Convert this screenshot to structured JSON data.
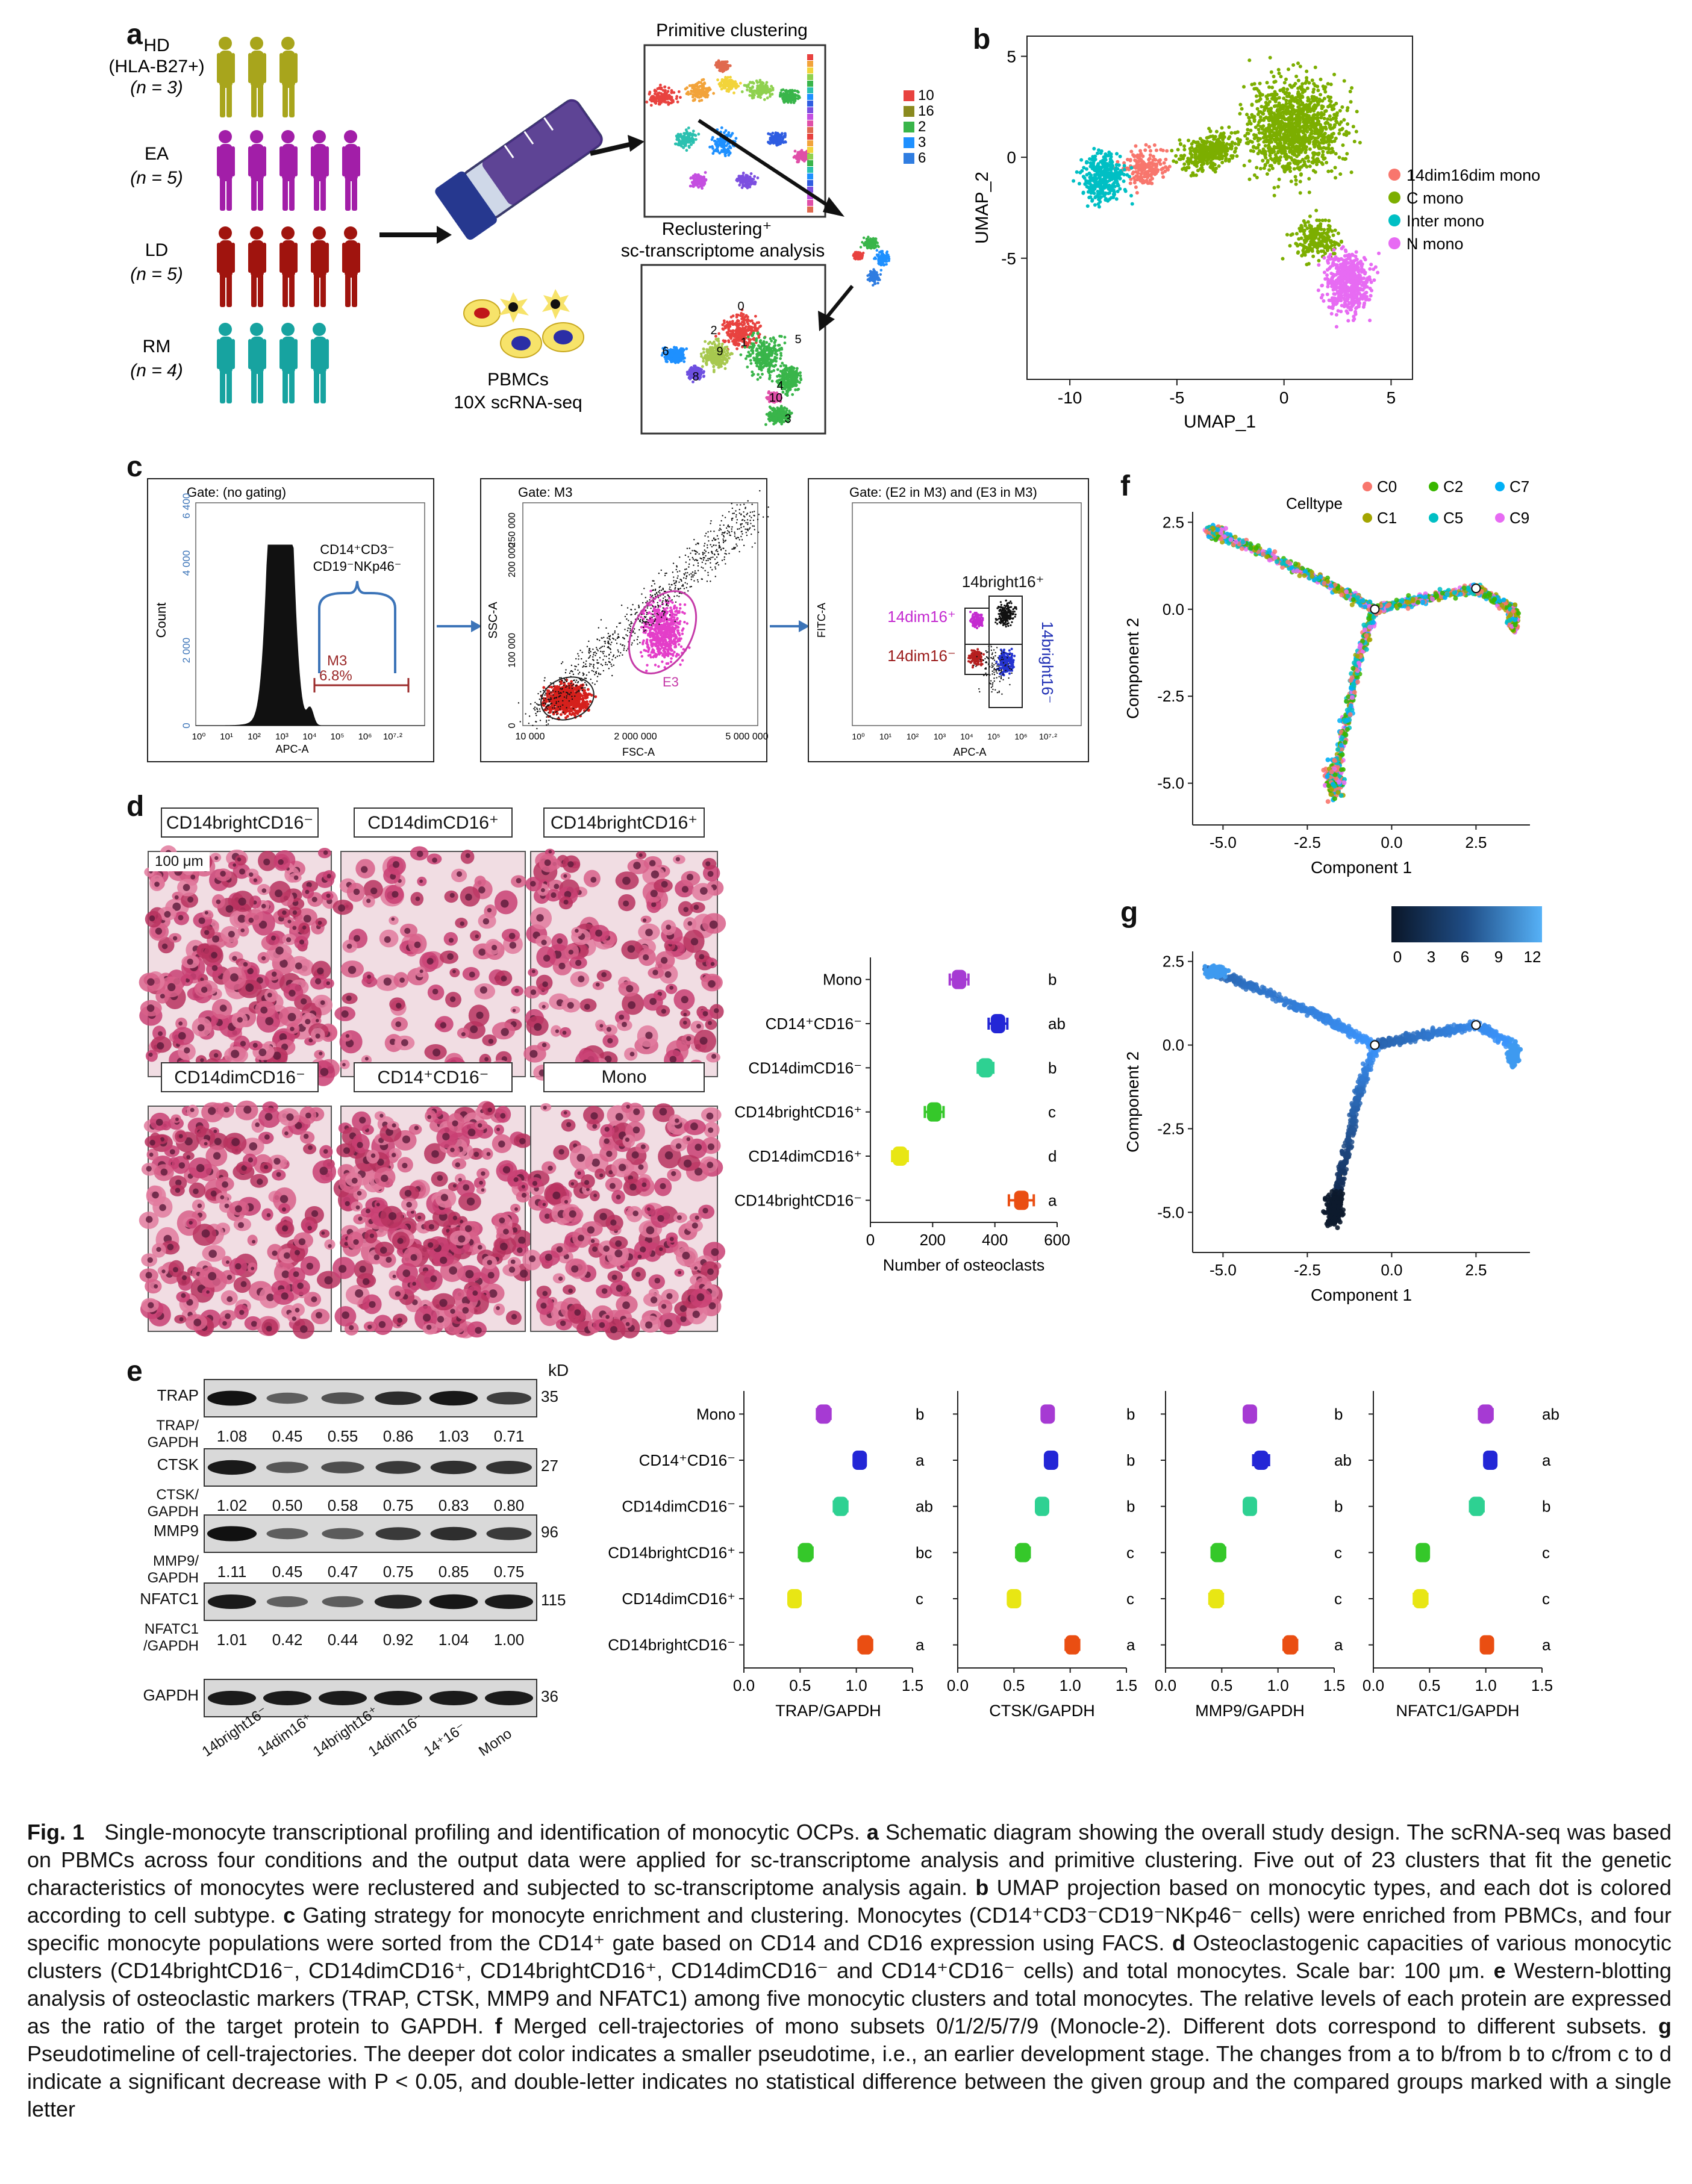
{
  "panel_letters": {
    "a": "a",
    "b": "b",
    "c": "c",
    "d": "d",
    "e": "e",
    "f": "f",
    "g": "g"
  },
  "panel_a": {
    "groups": [
      {
        "name": "HD",
        "sub": "(HLA-B27+)",
        "n": "(n = 3)",
        "color": "#a8a51c",
        "count": 3
      },
      {
        "name": "EA",
        "sub": "",
        "n": "(n = 5)",
        "color": "#a21ea8",
        "count": 5
      },
      {
        "name": "LD",
        "sub": "",
        "n": "(n = 5)",
        "color": "#a0140e",
        "count": 5
      },
      {
        "name": "RM",
        "sub": "",
        "n": "(n = 4)",
        "color": "#17a3a0",
        "count": 4
      }
    ],
    "primitive_title": "Primitive clustering",
    "recluster_title_1": "Reclustering⁺",
    "recluster_title_2": "sc-transcriptome analysis",
    "pbmc_1": "PBMCs",
    "pbmc_2": "10X scRNA-seq",
    "recluster_ids": [
      "10",
      "16",
      "2",
      "3",
      "6"
    ],
    "recluster_colors": [
      "#e8423f",
      "#8a8a1f",
      "#39b54a",
      "#1e90ff",
      "#2f7de1"
    ],
    "map_labels": [
      "0",
      "1",
      "2",
      "3",
      "4",
      "5",
      "6",
      "8",
      "9",
      "10"
    ]
  },
  "panel_b": {
    "xlabel": "UMAP_1",
    "ylabel": "UMAP_2",
    "xticks": [
      "-10",
      "-5",
      "0",
      "5"
    ],
    "yticks": [
      "5",
      "0",
      "-5"
    ],
    "legend": [
      {
        "label": "14dim16dim mono",
        "color": "#f8766d"
      },
      {
        "label": "C mono",
        "color": "#7cae00"
      },
      {
        "label": "Inter mono",
        "color": "#00bfc4"
      },
      {
        "label": "N mono",
        "color": "#e76bf3"
      }
    ]
  },
  "panel_c": {
    "gate1": "Gate: (no gating)",
    "gate2": "Gate: M3",
    "gate3": "Gate: (E2 in M3) and (E3 in M3)",
    "count_label": "Count",
    "apc_label": "APC-A",
    "ssc_label": "SSC-A",
    "fsc_label": "FSC-A",
    "fitc_label": "FITC-A",
    "pheno_1": "CD14⁺CD3⁻",
    "pheno_2": "CD19⁻NKp46⁻",
    "m3": "M3",
    "m3_pct": "6.8%",
    "e3": "E3",
    "y1_ticks": [
      "6 400",
      "4 000",
      "2 000",
      "0"
    ],
    "x1_ticks": [
      "10⁰",
      "10¹",
      "10²",
      "10³",
      "10⁴",
      "10⁵",
      "10⁶",
      "10⁷·²"
    ],
    "y2_ticks": [
      "250 000",
      "200 000",
      "100 000",
      "0"
    ],
    "x2_ticks": [
      "10 000",
      "2 000 000",
      "5 000 000"
    ],
    "q_labels": [
      {
        "text": "14bright16⁺",
        "color": "#111"
      },
      {
        "text": "14dim16⁺",
        "color": "#c42ad0"
      },
      {
        "text": "14dim16⁻",
        "color": "#9b1c1c"
      },
      {
        "text": "14bright16⁻",
        "color": "#1f2fb4"
      }
    ]
  },
  "panel_d": {
    "images": [
      {
        "label": "CD14brightCD16⁻",
        "scale": "100 μm"
      },
      {
        "label": "CD14dimCD16⁺",
        "scale": ""
      },
      {
        "label": "CD14brightCD16⁺",
        "scale": ""
      },
      {
        "label": "CD14dimCD16⁻",
        "scale": ""
      },
      {
        "label": "CD14⁺CD16⁻",
        "scale": ""
      },
      {
        "label": "Mono",
        "scale": ""
      }
    ]
  },
  "chart_data": [
    {
      "type": "scatter",
      "title": "",
      "xlabel": "Number of osteoclasts",
      "ylabel": "",
      "xlim": [
        0,
        600
      ],
      "xticks": [
        0,
        200,
        400,
        600
      ],
      "categories": [
        "Mono",
        "CD14⁺CD16⁻",
        "CD14dimCD16⁻",
        "CD14brightCD16⁺",
        "CD14dimCD16⁺",
        "CD14brightCD16⁻"
      ],
      "values": [
        285,
        410,
        370,
        205,
        95,
        485
      ],
      "errors": [
        30,
        30,
        25,
        30,
        25,
        40
      ],
      "colors": [
        "#a63ad3",
        "#2326d6",
        "#2ed192",
        "#35c82a",
        "#e8e614",
        "#ea4e12"
      ],
      "letters": [
        "b",
        "ab",
        "b",
        "c",
        "d",
        "a"
      ]
    },
    {
      "type": "scatter",
      "xlabel": "TRAP/GAPDH",
      "xlim": [
        0,
        1.5
      ],
      "xticks": [
        "0.0",
        "0.5",
        "1.0",
        "1.5"
      ],
      "categories": [
        "Mono",
        "CD14⁺CD16⁻",
        "CD14dimCD16⁻",
        "CD14brightCD16⁺",
        "CD14dimCD16⁺",
        "CD14brightCD16⁻"
      ],
      "values": [
        0.71,
        1.03,
        0.86,
        0.55,
        0.45,
        1.08
      ],
      "errors": [
        0.06,
        0.05,
        0.06,
        0.06,
        0.05,
        0.06
      ],
      "colors": [
        "#a63ad3",
        "#2326d6",
        "#2ed192",
        "#35c82a",
        "#e8e614",
        "#ea4e12"
      ],
      "letters": [
        "b",
        "a",
        "ab",
        "bc",
        "c",
        "a"
      ]
    },
    {
      "type": "scatter",
      "xlabel": "CTSK/GAPDH",
      "xlim": [
        0,
        1.5
      ],
      "xticks": [
        "0.0",
        "0.5",
        "1.0",
        "1.5"
      ],
      "categories": [
        "Mono",
        "CD14⁺CD16⁻",
        "CD14dimCD16⁻",
        "CD14brightCD16⁺",
        "CD14dimCD16⁺",
        "CD14brightCD16⁻"
      ],
      "values": [
        0.8,
        0.83,
        0.75,
        0.58,
        0.5,
        1.02
      ],
      "errors": [
        0.04,
        0.05,
        0.05,
        0.06,
        0.05,
        0.06
      ],
      "colors": [
        "#a63ad3",
        "#2326d6",
        "#2ed192",
        "#35c82a",
        "#e8e614",
        "#ea4e12"
      ],
      "letters": [
        "b",
        "b",
        "b",
        "c",
        "c",
        "a"
      ]
    },
    {
      "type": "scatter",
      "xlabel": "MMP9/GAPDH",
      "xlim": [
        0,
        1.5
      ],
      "xticks": [
        "0.0",
        "0.5",
        "1.0",
        "1.5"
      ],
      "categories": [
        "Mono",
        "CD14⁺CD16⁻",
        "CD14dimCD16⁻",
        "CD14brightCD16⁺",
        "CD14dimCD16⁺",
        "CD14brightCD16⁻"
      ],
      "values": [
        0.75,
        0.85,
        0.75,
        0.47,
        0.45,
        1.11
      ],
      "errors": [
        0.05,
        0.07,
        0.05,
        0.06,
        0.06,
        0.06
      ],
      "colors": [
        "#a63ad3",
        "#2326d6",
        "#2ed192",
        "#35c82a",
        "#e8e614",
        "#ea4e12"
      ],
      "letters": [
        "b",
        "ab",
        "b",
        "c",
        "c",
        "a"
      ]
    },
    {
      "type": "scatter",
      "xlabel": "NFATC1/GAPDH",
      "xlim": [
        0,
        1.5
      ],
      "xticks": [
        "0.0",
        "0.5",
        "1.0",
        "1.5"
      ],
      "categories": [
        "Mono",
        "CD14⁺CD16⁻",
        "CD14dimCD16⁻",
        "CD14brightCD16⁺",
        "CD14dimCD16⁺",
        "CD14brightCD16⁻"
      ],
      "values": [
        1.0,
        1.04,
        0.92,
        0.44,
        0.42,
        1.01
      ],
      "errors": [
        0.06,
        0.05,
        0.06,
        0.05,
        0.06,
        0.05
      ],
      "colors": [
        "#a63ad3",
        "#2326d6",
        "#2ed192",
        "#35c82a",
        "#e8e614",
        "#ea4e12"
      ],
      "letters": [
        "ab",
        "a",
        "b",
        "c",
        "c",
        "a"
      ]
    }
  ],
  "panel_e": {
    "kd_label": "kD",
    "rows": [
      {
        "name": "TRAP",
        "ratio_label": "TRAP/\nGAPDH",
        "kd": "35",
        "ratios": [
          "1.08",
          "0.45",
          "0.55",
          "0.86",
          "1.03",
          "0.71"
        ]
      },
      {
        "name": "CTSK",
        "ratio_label": "CTSK/\nGAPDH",
        "kd": "27",
        "ratios": [
          "1.02",
          "0.50",
          "0.58",
          "0.75",
          "0.83",
          "0.80"
        ]
      },
      {
        "name": "MMP9",
        "ratio_label": "MMP9/\nGAPDH",
        "kd": "96",
        "ratios": [
          "1.11",
          "0.45",
          "0.47",
          "0.75",
          "0.85",
          "0.75"
        ]
      },
      {
        "name": "NFATC1",
        "ratio_label": "NFATC1\n/GAPDH",
        "kd": "115",
        "ratios": [
          "1.01",
          "0.42",
          "0.44",
          "0.92",
          "1.04",
          "1.00"
        ]
      },
      {
        "name": "GAPDH",
        "ratio_label": "",
        "kd": "36",
        "ratios": []
      }
    ],
    "lanes": [
      "14bright16⁻",
      "14dim16⁺",
      "14bright16⁺",
      "14dim16⁻",
      "14⁺16⁻",
      "Mono"
    ]
  },
  "panel_f": {
    "xlabel": "Component 1",
    "ylabel": "Component 2",
    "xticks": [
      "-5.0",
      "-2.5",
      "0.0",
      "2.5"
    ],
    "yticks": [
      "2.5",
      "0.0",
      "-2.5",
      "-5.0"
    ],
    "legend_title": "Celltype",
    "legend": [
      {
        "label": "C0",
        "color": "#f8766d"
      },
      {
        "label": "C2",
        "color": "#39b600"
      },
      {
        "label": "C7",
        "color": "#00b0f6"
      },
      {
        "label": "C1",
        "color": "#a3a500"
      },
      {
        "label": "C5",
        "color": "#00bfc4"
      },
      {
        "label": "C9",
        "color": "#e76bf3"
      }
    ]
  },
  "panel_g": {
    "xlabel": "Component 1",
    "ylabel": "Component 2",
    "xticks": [
      "-5.0",
      "-2.5",
      "0.0",
      "2.5"
    ],
    "yticks": [
      "2.5",
      "0.0",
      "-2.5",
      "-5.0"
    ],
    "colorbar_ticks": [
      "0",
      "3",
      "6",
      "9",
      "12"
    ]
  },
  "caption": {
    "fig": "Fig. 1",
    "title": "Single-monocyte transcriptional profiling and identification of monocytic OCPs.",
    "a": "a",
    "a_text": "Schematic diagram showing the overall study design. The scRNA-seq was based on PBMCs across four conditions and the output data were applied for sc-transcriptome analysis and primitive clustering. Five out of 23 clusters that fit the genetic characteristics of monocytes were reclustered and subjected to sc-transcriptome analysis again.",
    "b": "b",
    "b_text": "UMAP projection based on monocytic types, and each dot is colored according to cell subtype.",
    "c": "c",
    "c_text": "Gating strategy for monocyte enrichment and clustering. Monocytes (CD14⁺CD3⁻CD19⁻NKp46⁻ cells) were enriched from PBMCs, and four specific monocyte populations were sorted from the CD14⁺ gate based on CD14 and CD16 expression using FACS.",
    "d": "d",
    "d_text": "Osteoclastogenic capacities of various monocytic clusters (CD14brightCD16⁻, CD14dimCD16⁺, CD14brightCD16⁺, CD14dimCD16⁻ and CD14⁺CD16⁻ cells) and total monocytes. Scale bar: 100 μm.",
    "e": "e",
    "e_text": "Western-blotting analysis of osteoclastic markers (TRAP, CTSK, MMP9 and NFATC1) among five monocytic clusters and total monocytes. The relative levels of each protein are expressed as the ratio of the target protein to GAPDH.",
    "f": "f",
    "f_text": "Merged cell-trajectories of mono subsets 0/1/2/5/7/9 (Monocle-2). Different dots correspond to different subsets.",
    "g": "g",
    "g_text": "Pseudotimeline of cell-trajectories. The deeper dot color indicates a smaller pseudotime, i.e., an earlier development stage. The changes from a to b/from b to c/from c to d indicate a significant decrease with P < 0.05, and double-letter indicates no statistical difference between the given group and the compared groups marked with a single letter"
  }
}
